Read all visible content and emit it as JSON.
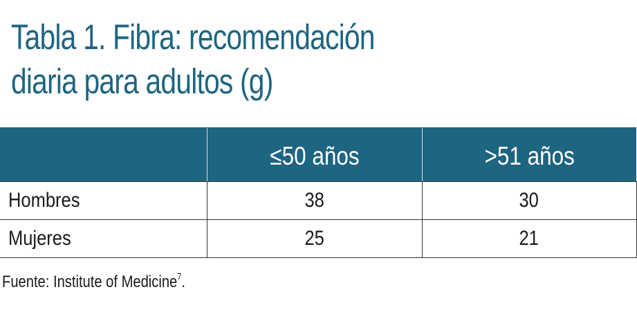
{
  "title": {
    "line1": "Tabla 1. Fibra: recomendación",
    "line2": "diaria para adultos (g)"
  },
  "table": {
    "headers": [
      "",
      "≤50 años",
      ">51 años"
    ],
    "rows": [
      {
        "label": "Hombres",
        "values": [
          "38",
          "30"
        ]
      },
      {
        "label": "Mujeres",
        "values": [
          "25",
          "21"
        ]
      }
    ]
  },
  "source": {
    "text": "Fuente: Institute of Medicine",
    "ref": "7",
    "end": "."
  },
  "colors": {
    "accent": "#1e6581",
    "header_text": "#ffffff",
    "body_text": "#1a1a1a"
  }
}
